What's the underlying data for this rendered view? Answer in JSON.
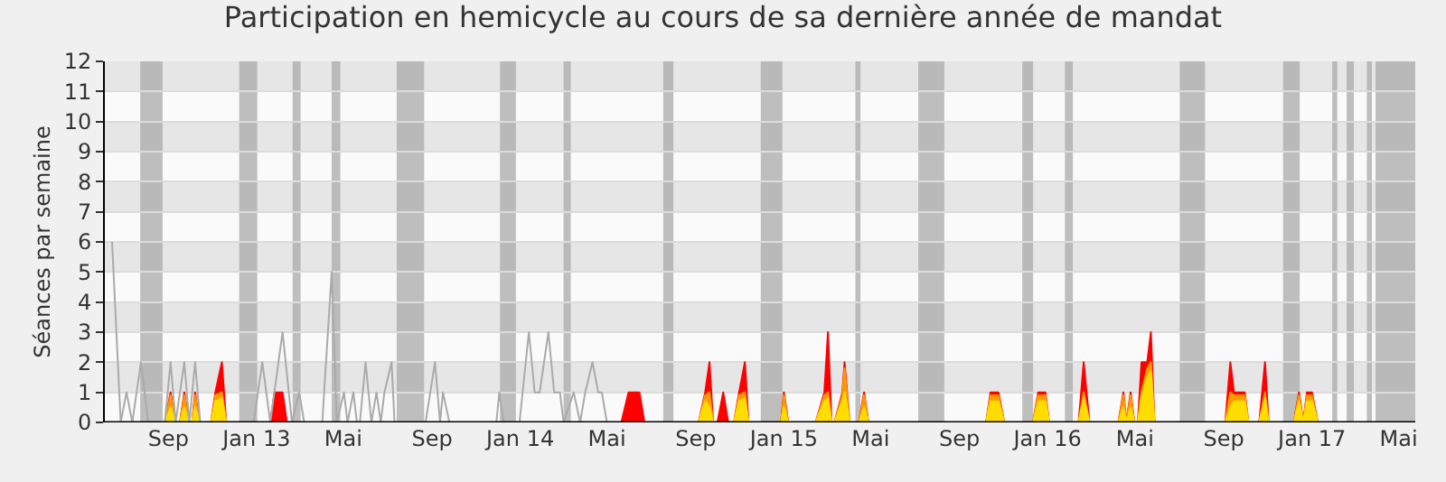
{
  "chart_data": {
    "type": "area",
    "title": "Participation en hemicycle au cours de sa dernière année de mandat",
    "ylabel": "Séances par semaine",
    "xlim": [
      "2012-06-05",
      "2017-05-24"
    ],
    "xticks": [
      {
        "value": "2012-09-01",
        "label": "Sep"
      },
      {
        "value": "2013-01-01",
        "label": "Jan 13"
      },
      {
        "value": "2013-05-01",
        "label": "Mai"
      },
      {
        "value": "2013-09-01",
        "label": "Sep"
      },
      {
        "value": "2014-01-01",
        "label": "Jan 14"
      },
      {
        "value": "2014-05-01",
        "label": "Mai"
      },
      {
        "value": "2014-09-01",
        "label": "Sep"
      },
      {
        "value": "2015-01-01",
        "label": "Jan 15"
      },
      {
        "value": "2015-05-01",
        "label": "Mai"
      },
      {
        "value": "2015-09-01",
        "label": "Sep"
      },
      {
        "value": "2016-01-01",
        "label": "Jan 16"
      },
      {
        "value": "2016-05-01",
        "label": "Mai"
      },
      {
        "value": "2016-09-01",
        "label": "Sep"
      },
      {
        "value": "2017-01-01",
        "label": "Jan 17"
      },
      {
        "value": "2017-05-01",
        "label": "Mai"
      }
    ],
    "ylim": [
      0,
      12
    ],
    "yticks": [
      0,
      1,
      2,
      3,
      4,
      5,
      6,
      7,
      8,
      9,
      10,
      11,
      12
    ],
    "grid": "y",
    "x": [
      "2012-08-27",
      "2012-09-04",
      "2012-09-11",
      "2012-09-17",
      "2012-09-23",
      "2012-09-29",
      "2012-10-04",
      "2012-10-08",
      "2012-10-14",
      "2012-10-30",
      "2012-11-05",
      "2012-11-14",
      "2012-11-20",
      "2013-01-20",
      "2013-01-26",
      "2013-02-06",
      "2013-02-12",
      "2014-05-21",
      "2014-05-31",
      "2014-06-15",
      "2014-06-22",
      "2014-09-05",
      "2014-09-14",
      "2014-09-20",
      "2014-09-25",
      "2014-10-01",
      "2014-10-09",
      "2014-10-16",
      "2014-10-24",
      "2014-10-31",
      "2014-11-08",
      "2014-11-13",
      "2014-12-28",
      "2015-01-01",
      "2015-01-07",
      "2015-02-14",
      "2015-02-26",
      "2015-03-03",
      "2015-03-08",
      "2015-03-12",
      "2015-03-23",
      "2015-03-26",
      "2015-04-02",
      "2015-04-15",
      "2015-04-22",
      "2015-04-28",
      "2015-10-08",
      "2015-10-14",
      "2015-10-25",
      "2015-11-02",
      "2015-12-12",
      "2015-12-19",
      "2015-12-29",
      "2016-01-03",
      "2016-02-13",
      "2016-02-20",
      "2016-02-28",
      "2016-04-08",
      "2016-04-15",
      "2016-04-19",
      "2016-04-25",
      "2016-04-30",
      "2016-05-05",
      "2016-05-10",
      "2016-05-18",
      "2016-05-23",
      "2016-05-28",
      "2016-09-03",
      "2016-09-10",
      "2016-09-15",
      "2016-09-30",
      "2016-10-05",
      "2016-10-20",
      "2016-10-28",
      "2016-11-02",
      "2016-12-07",
      "2016-12-14",
      "2016-12-20",
      "2016-12-25",
      "2017-01-01",
      "2017-01-09"
    ],
    "series": [
      {
        "color": "#ff0000",
        "values": [
          0,
          1,
          0,
          0,
          1,
          0,
          0,
          1,
          0,
          0,
          1,
          2,
          0,
          0,
          1,
          1,
          0,
          0,
          1,
          1,
          0,
          0,
          1,
          2,
          0,
          0,
          1,
          0,
          0,
          1,
          2,
          0,
          0,
          1,
          0,
          0,
          1,
          3,
          0,
          0,
          1,
          2,
          0,
          0,
          1,
          0,
          0,
          1,
          1,
          0,
          0,
          1,
          1,
          0,
          0,
          2,
          0,
          0,
          1,
          0,
          1,
          0,
          0,
          2,
          2,
          3,
          0,
          0,
          2,
          1,
          1,
          0,
          0,
          2,
          0,
          0,
          1,
          0,
          1,
          1,
          0
        ]
      },
      {
        "color": "#ff9900",
        "values": [
          0,
          0.9,
          0,
          0,
          0.9,
          0,
          0,
          0.9,
          0,
          0,
          0.9,
          1,
          0,
          0,
          0,
          0,
          0,
          0,
          0,
          0,
          0,
          0,
          0.9,
          1,
          0,
          0,
          0,
          0,
          0,
          0.9,
          1,
          0,
          0,
          0.9,
          0,
          0,
          0.9,
          1,
          0,
          0,
          0.9,
          1.8,
          0,
          0,
          0.9,
          0,
          0,
          0.9,
          0.9,
          0,
          0,
          0.9,
          0.9,
          0,
          0,
          1,
          0,
          0,
          0.9,
          0,
          0.9,
          0,
          0,
          1,
          1.8,
          2,
          0,
          0,
          1,
          0.9,
          0.9,
          0,
          0,
          1,
          0,
          0,
          0.9,
          0,
          0.9,
          0.9,
          0
        ]
      },
      {
        "color": "#ffdd00",
        "values": [
          0,
          0.5,
          0,
          0,
          0.5,
          0,
          0,
          0.5,
          0,
          0,
          0.7,
          0.8,
          0,
          0,
          0,
          0,
          0,
          0,
          0,
          0,
          0,
          0,
          0.7,
          0.5,
          0,
          0,
          0,
          0,
          0,
          0.7,
          0.8,
          0,
          0,
          0.5,
          0,
          0,
          0.7,
          0.8,
          0,
          0,
          0.7,
          1,
          0,
          0,
          0.5,
          0,
          0,
          0.7,
          0.7,
          0,
          0,
          0.7,
          0.7,
          0,
          0,
          0.8,
          0,
          0,
          0.5,
          0,
          0.5,
          0,
          0,
          0.8,
          1.5,
          1.7,
          0,
          0,
          0.5,
          0.7,
          0.7,
          0,
          0,
          0.8,
          0,
          0,
          0.7,
          0,
          0.7,
          0.7,
          0
        ]
      },
      {
        "type": "line",
        "color": "#aaaaaa",
        "x": [
          "2012-06-15",
          "2012-06-27",
          "2012-07-05",
          "2012-07-13",
          "2012-07-25",
          "2012-08-04",
          "2012-08-27",
          "2012-09-04",
          "2012-09-11",
          "2012-09-23",
          "2012-09-30",
          "2012-10-08",
          "2012-10-15",
          "2012-12-28",
          "2013-01-09",
          "2013-01-20",
          "2013-02-06",
          "2013-02-19",
          "2013-03-01",
          "2013-03-08",
          "2013-04-02",
          "2013-04-15",
          "2013-04-22",
          "2013-05-02",
          "2013-05-07",
          "2013-05-15",
          "2013-05-20",
          "2013-05-24",
          "2013-06-01",
          "2013-06-09",
          "2013-06-16",
          "2013-06-22",
          "2013-06-27",
          "2013-07-07",
          "2013-07-11",
          "2013-08-23",
          "2013-09-05",
          "2013-09-12",
          "2013-09-16",
          "2013-09-25",
          "2013-11-29",
          "2013-12-03",
          "2013-12-09",
          "2013-12-31",
          "2014-01-13",
          "2014-01-21",
          "2014-01-28",
          "2014-02-09",
          "2014-02-17",
          "2014-02-25",
          "2014-03-02",
          "2014-03-16",
          "2014-03-25",
          "2014-04-01",
          "2014-04-11",
          "2014-04-19",
          "2014-04-24",
          "2014-05-01"
        ],
        "values": [
          6,
          0,
          1,
          0,
          2,
          0,
          0,
          2,
          0,
          2,
          0,
          2,
          0,
          0,
          2,
          0,
          3,
          0,
          1,
          0,
          0,
          5,
          0,
          1,
          0,
          1,
          0,
          0,
          2,
          0,
          1,
          0,
          1,
          2,
          0,
          0,
          2,
          0,
          1,
          0,
          0,
          1,
          0,
          0,
          3,
          1,
          1,
          3,
          1,
          1,
          0,
          1,
          0,
          1,
          2,
          1,
          1,
          0
        ]
      }
    ],
    "bands": [
      {
        "axis": "x",
        "from": "2012-07-24",
        "to": "2012-08-24",
        "color": "#aaaaaa"
      },
      {
        "axis": "x",
        "from": "2012-12-08",
        "to": "2013-01-02",
        "color": "#aaaaaa"
      },
      {
        "axis": "x",
        "from": "2013-02-20",
        "to": "2013-03-03",
        "color": "#aaaaaa"
      },
      {
        "axis": "x",
        "from": "2013-04-15",
        "to": "2013-04-27",
        "color": "#aaaaaa"
      },
      {
        "axis": "x",
        "from": "2013-07-14",
        "to": "2013-08-21",
        "color": "#aaaaaa"
      },
      {
        "axis": "x",
        "from": "2013-12-04",
        "to": "2013-12-26",
        "color": "#aaaaaa"
      },
      {
        "axis": "x",
        "from": "2014-03-02",
        "to": "2014-03-12",
        "color": "#aaaaaa"
      },
      {
        "axis": "x",
        "from": "2014-07-18",
        "to": "2014-08-01",
        "color": "#aaaaaa"
      },
      {
        "axis": "x",
        "from": "2014-11-30",
        "to": "2014-12-30",
        "color": "#aaaaaa"
      },
      {
        "axis": "x",
        "from": "2015-04-10",
        "to": "2015-04-17",
        "color": "#aaaaaa"
      },
      {
        "axis": "x",
        "from": "2015-07-06",
        "to": "2015-08-11",
        "color": "#aaaaaa"
      },
      {
        "axis": "x",
        "from": "2015-11-27",
        "to": "2015-12-12",
        "color": "#aaaaaa"
      },
      {
        "axis": "x",
        "from": "2016-01-25",
        "to": "2016-02-05",
        "color": "#aaaaaa"
      },
      {
        "axis": "x",
        "from": "2016-07-02",
        "to": "2016-08-06",
        "color": "#aaaaaa"
      },
      {
        "axis": "x",
        "from": "2016-11-22",
        "to": "2016-12-15",
        "color": "#aaaaaa"
      },
      {
        "axis": "x",
        "from": "2017-01-29",
        "to": "2017-02-05",
        "color": "#aaaaaa"
      },
      {
        "axis": "x",
        "from": "2017-02-18",
        "to": "2017-02-28",
        "color": "#aaaaaa"
      },
      {
        "axis": "x",
        "from": "2017-03-18",
        "to": "2017-03-25",
        "color": "#aaaaaa"
      },
      {
        "axis": "x",
        "from": "2017-03-30",
        "to": "2017-05-24",
        "color": "#aaaaaa"
      }
    ]
  }
}
